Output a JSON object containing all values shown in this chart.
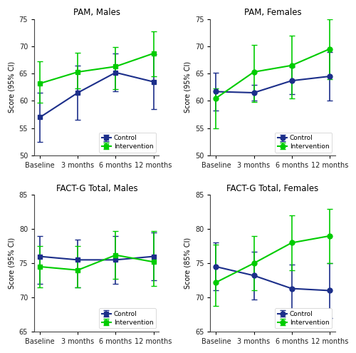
{
  "subplots": [
    {
      "title": "PAM, Males",
      "ylabel": "Score (95% CI)",
      "ylim": [
        50,
        75
      ],
      "yticks": [
        50,
        55,
        60,
        65,
        70,
        75
      ],
      "control": {
        "y": [
          57.0,
          61.5,
          65.2,
          63.5
        ],
        "yerr_lo": [
          4.5,
          5.0,
          3.5,
          5.0
        ],
        "yerr_hi": [
          4.5,
          5.0,
          3.5,
          5.0
        ],
        "color": "#1c2f8a",
        "marker": "s",
        "label": "Control"
      },
      "intervention": {
        "y": [
          63.2,
          65.3,
          66.3,
          68.7
        ],
        "yerr_lo": [
          3.5,
          3.0,
          4.2,
          4.2
        ],
        "yerr_hi": [
          4.0,
          3.5,
          3.5,
          4.0
        ],
        "color": "#00cc00",
        "marker": "s",
        "label": "Intervention"
      }
    },
    {
      "title": "PAM, Females",
      "ylabel": "Score (95% CI)",
      "ylim": [
        50,
        75
      ],
      "yticks": [
        50,
        55,
        60,
        65,
        70,
        75
      ],
      "control": {
        "y": [
          61.7,
          61.5,
          63.7,
          64.5
        ],
        "yerr_lo": [
          3.5,
          1.5,
          2.5,
          4.5
        ],
        "yerr_hi": [
          3.5,
          1.5,
          2.5,
          4.5
        ],
        "color": "#1c2f8a",
        "marker": "o",
        "label": "Control"
      },
      "intervention": {
        "y": [
          60.5,
          65.3,
          66.5,
          69.5
        ],
        "yerr_lo": [
          5.5,
          5.5,
          6.0,
          5.5
        ],
        "yerr_hi": [
          1.8,
          5.0,
          5.5,
          5.5
        ],
        "color": "#00cc00",
        "marker": "o",
        "label": "Intervention"
      }
    },
    {
      "title": "FACT-G Total, Males",
      "ylabel": "Score (95% CI)",
      "ylim": [
        65,
        85
      ],
      "yticks": [
        65,
        70,
        75,
        80,
        85
      ],
      "control": {
        "y": [
          76.0,
          75.5,
          75.5,
          76.0
        ],
        "yerr_lo": [
          4.0,
          4.0,
          3.5,
          3.5
        ],
        "yerr_hi": [
          3.0,
          3.0,
          3.5,
          3.5
        ],
        "color": "#1c2f8a",
        "marker": "s",
        "label": "Control"
      },
      "intervention": {
        "y": [
          74.5,
          74.0,
          76.2,
          75.2
        ],
        "yerr_lo": [
          3.0,
          2.5,
          3.5,
          3.5
        ],
        "yerr_hi": [
          3.0,
          3.5,
          3.5,
          4.5
        ],
        "color": "#00cc00",
        "marker": "s",
        "label": "Intervention"
      }
    },
    {
      "title": "FACT-G Total, Females",
      "ylabel": "Score (85% CI)",
      "ylim": [
        65,
        85
      ],
      "yticks": [
        65,
        70,
        75,
        80,
        85
      ],
      "control": {
        "y": [
          74.5,
          73.2,
          71.3,
          71.0
        ],
        "yerr_lo": [
          3.5,
          3.5,
          3.5,
          4.0
        ],
        "yerr_hi": [
          3.5,
          3.5,
          3.5,
          4.0
        ],
        "color": "#1c2f8a",
        "marker": "o",
        "label": "Control"
      },
      "intervention": {
        "y": [
          72.2,
          75.0,
          78.0,
          79.0
        ],
        "yerr_lo": [
          3.5,
          4.0,
          4.0,
          4.0
        ],
        "yerr_hi": [
          5.5,
          4.0,
          4.0,
          4.0
        ],
        "color": "#00cc00",
        "marker": "o",
        "label": "Intervention"
      }
    }
  ],
  "xticklabels": [
    "Baseline",
    "3 months",
    "6 months",
    "12 months"
  ],
  "background_color": "#ffffff",
  "figure_background": "#ffffff"
}
